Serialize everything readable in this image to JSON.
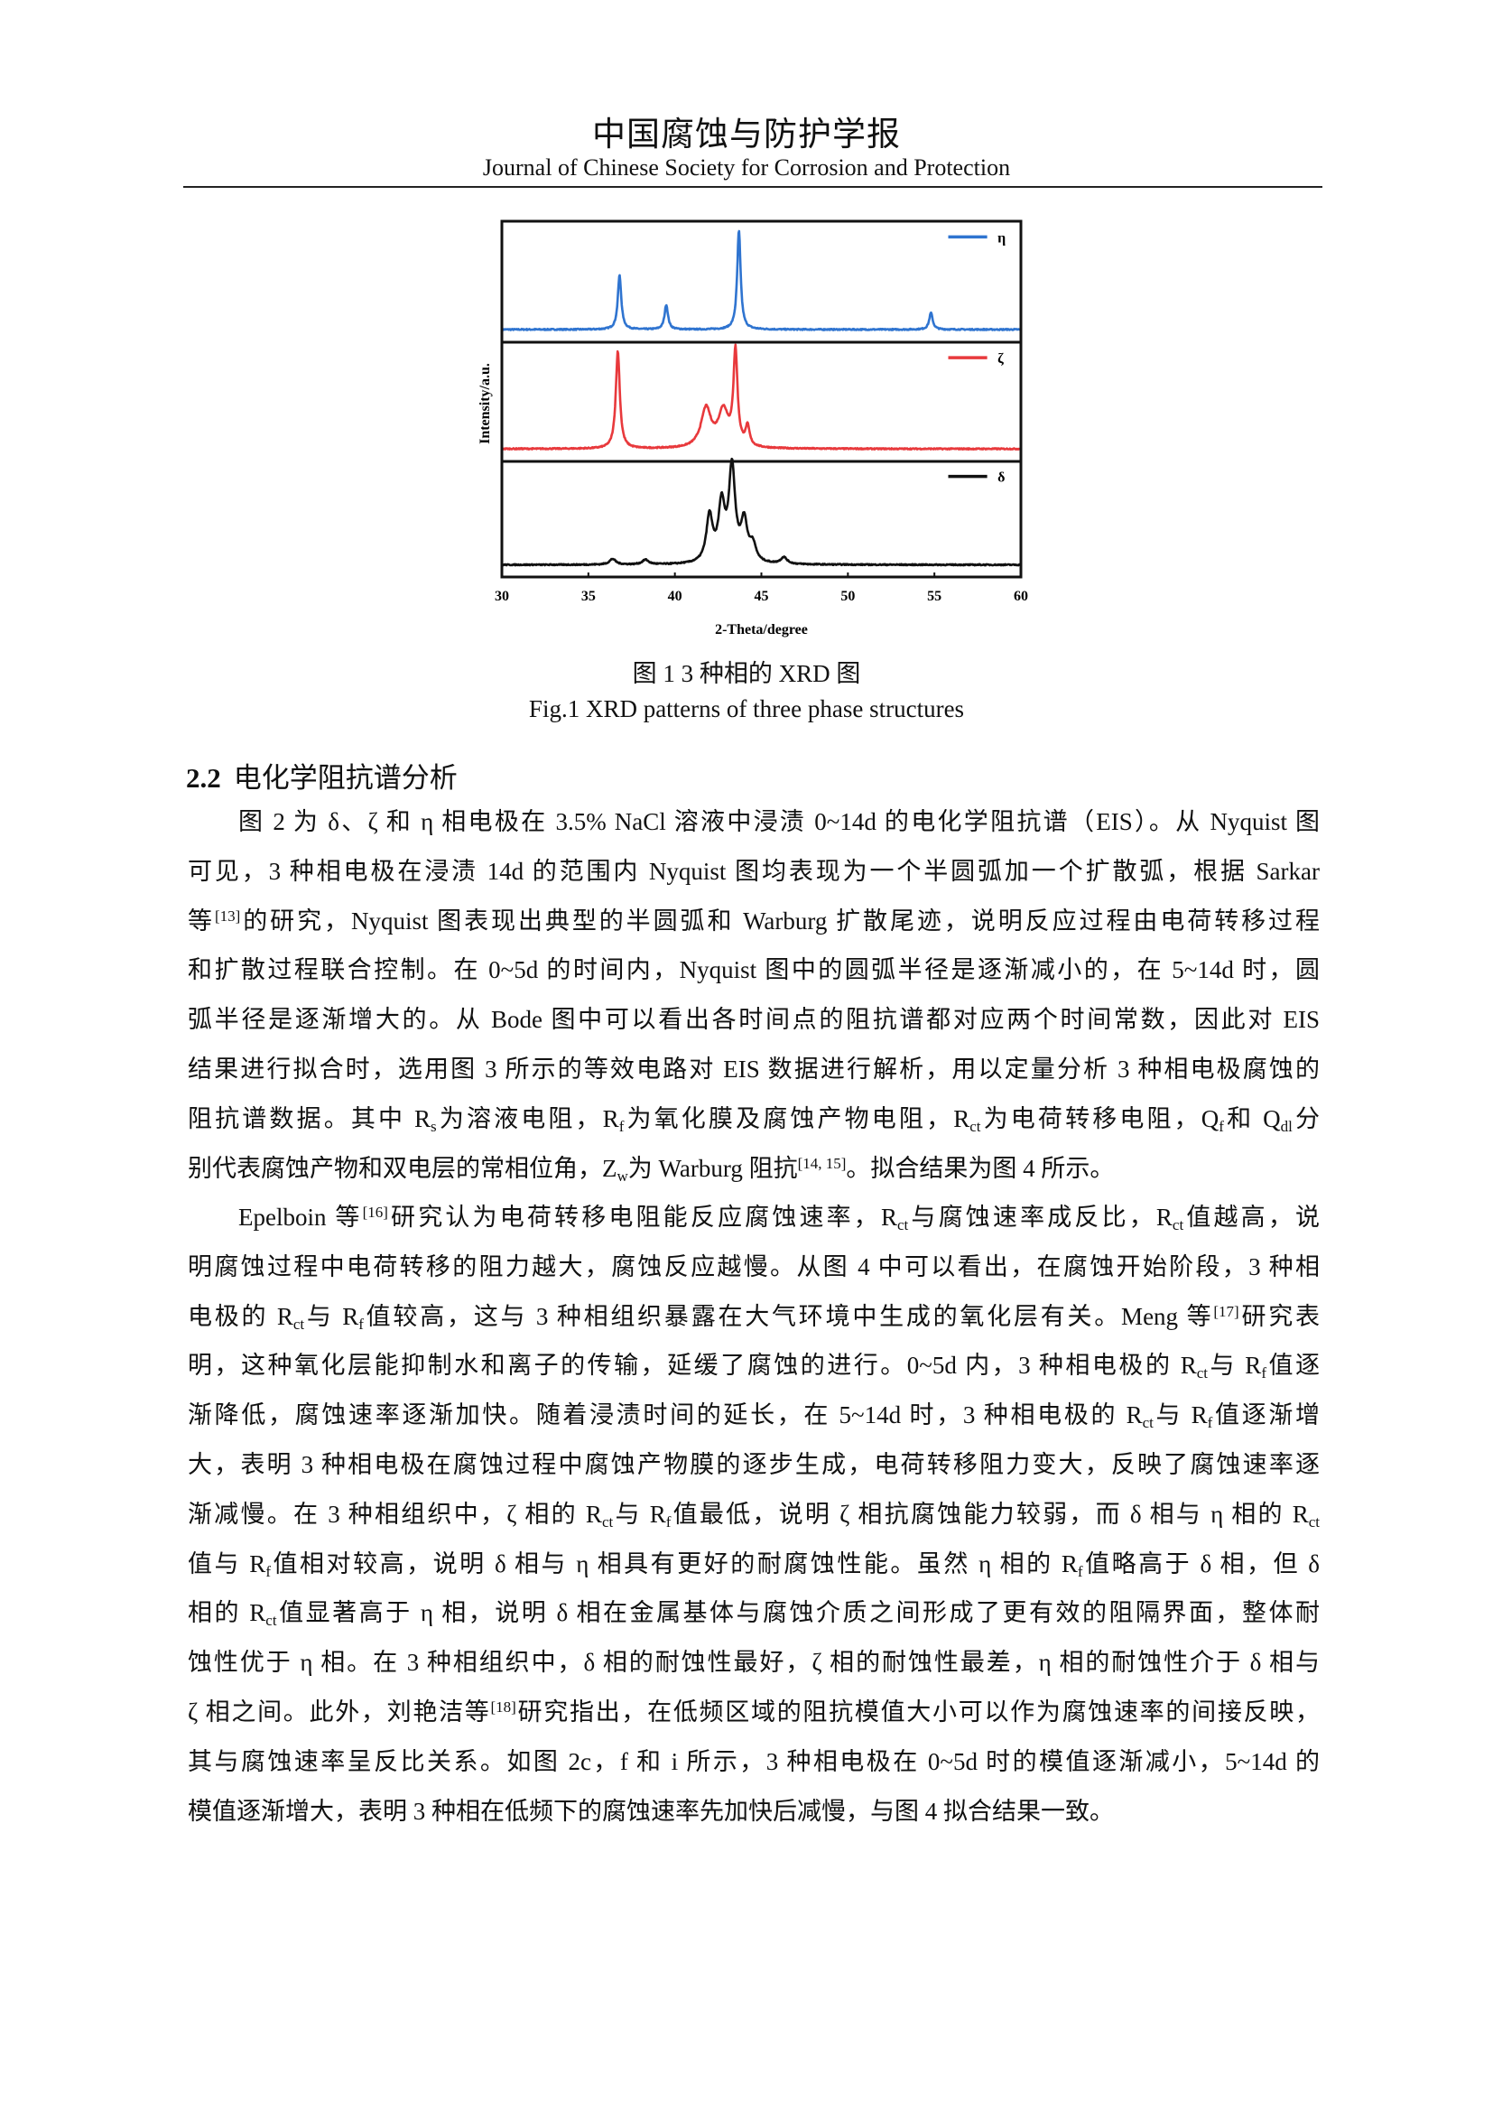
{
  "header": {
    "journal_cn": "中国腐蚀与防护学报",
    "journal_en": "Journal of Chinese Society for Corrosion and Protection"
  },
  "figure": {
    "caption_cn": "图 1  3 种相的 XRD 图",
    "caption_en": "Fig.1 XRD patterns of three phase structures"
  },
  "chart_data": {
    "type": "line",
    "title": "",
    "xlabel": "2-Theta/degree",
    "ylabel": "Intensity/a.u.",
    "xlim": [
      30,
      60
    ],
    "xticks": [
      "30",
      "35",
      "40",
      "45",
      "50",
      "55",
      "60"
    ],
    "grid": false,
    "layout": "three stacked panels, shared x axis",
    "legend_placement": "top-right of each panel",
    "series": [
      {
        "name": "η",
        "color": "#2f74d0",
        "peaks_2theta": [
          36.8,
          39.5,
          43.7,
          54.8
        ],
        "relative_intensity": [
          0.55,
          0.25,
          1.0,
          0.17
        ]
      },
      {
        "name": "ζ",
        "color": "#e8393c",
        "peaks_2theta": [
          36.7,
          41.8,
          42.8,
          43.5,
          44.2
        ],
        "relative_intensity": [
          1.0,
          0.4,
          0.37,
          0.97,
          0.2
        ]
      },
      {
        "name": "δ",
        "color": "#111111",
        "peaks_2theta": [
          36.4,
          38.3,
          42.0,
          42.7,
          43.3,
          44.0,
          44.5,
          46.3
        ],
        "relative_intensity": [
          0.06,
          0.05,
          0.49,
          0.59,
          1.0,
          0.42,
          0.18,
          0.07
        ]
      }
    ]
  },
  "section": {
    "number": "2.2",
    "title": "电化学阻抗谱分析"
  },
  "paragraphs": [
    [
      "图 2 为 δ、ζ 和 η 相电极在 3.5% NaCl 溶液中浸渍 0~14d 的电化学阻抗谱（EIS）。从 Nyquist 图",
      "可见，3 种相电极在浸渍 14d 的范围内 Nyquist 图均表现为一个半圆弧加一个扩散弧，根据 Sarkar",
      "等^{[13]}的研究，Nyquist 图表现出典型的半圆弧和 Warburg 扩散尾迹，说明反应过程由电荷转移过程",
      "和扩散过程联合控制。在 0~5d 的时间内，Nyquist 图中的圆弧半径是逐渐减小的，在 5~14d 时，圆",
      "弧半径是逐渐增大的。从 Bode 图中可以看出各时间点的阻抗谱都对应两个时间常数，因此对 EIS",
      "结果进行拟合时，选用图 3 所示的等效电路对 EIS 数据进行解析，用以定量分析 3 种相电极腐蚀的",
      "阻抗谱数据。其中 R_{s}为溶液电阻，R_{f}为氧化膜及腐蚀产物电阻，R_{ct}为电荷转移电阻，Q_{f}和 Q_{dl}分",
      "别代表腐蚀产物和双电层的常相位角，Z_{w}为 Warburg 阻抗^{[14, 15]}。拟合结果为图 4 所示。"
    ],
    [
      "Epelboin 等^{[16]}研究认为电荷转移电阻能反应腐蚀速率，R_{ct}与腐蚀速率成反比，R_{ct}值越高，说",
      "明腐蚀过程中电荷转移的阻力越大，腐蚀反应越慢。从图 4 中可以看出，在腐蚀开始阶段，3 种相",
      "电极的 R_{ct}与 R_{f}值较高，这与 3 种相组织暴露在大气环境中生成的氧化层有关。Meng 等^{[17]}研究表",
      "明，这种氧化层能抑制水和离子的传输，延缓了腐蚀的进行。0~5d 内，3 种相电极的 R_{ct}与 R_{f}值逐",
      "渐降低，腐蚀速率逐渐加快。随着浸渍时间的延长，在 5~14d 时，3 种相电极的 R_{ct}与 R_{f}值逐渐增",
      "大，表明 3 种相电极在腐蚀过程中腐蚀产物膜的逐步生成，电荷转移阻力变大，反映了腐蚀速率逐",
      "渐减慢。在 3 种相组织中，ζ 相的 R_{ct}与 R_{f}值最低，说明 ζ 相抗腐蚀能力较弱，而 δ 相与 η 相的 R_{ct}",
      "值与 R_{f}值相对较高，说明 δ 相与 η 相具有更好的耐腐蚀性能。虽然 η 相的 R_{f}值略高于 δ 相，但 δ",
      "相的 R_{ct}值显著高于 η 相，说明 δ 相在金属基体与腐蚀介质之间形成了更有效的阻隔界面，整体耐",
      "蚀性优于 η 相。在 3 种相组织中，δ 相的耐蚀性最好，ζ 相的耐蚀性最差，η 相的耐蚀性介于 δ 相与",
      "ζ 相之间。此外，刘艳洁等^{[18]}研究指出，在低频区域的阻抗模值大小可以作为腐蚀速率的间接反映，",
      "其与腐蚀速率呈反比关系。如图 2c，f 和 i 所示，3 种相电极在 0~5d 时的模值逐渐减小，5~14d 的",
      "模值逐渐增大，表明 3 种相在低频下的腐蚀速率先加快后减慢，与图 4 拟合结果一致。"
    ]
  ]
}
